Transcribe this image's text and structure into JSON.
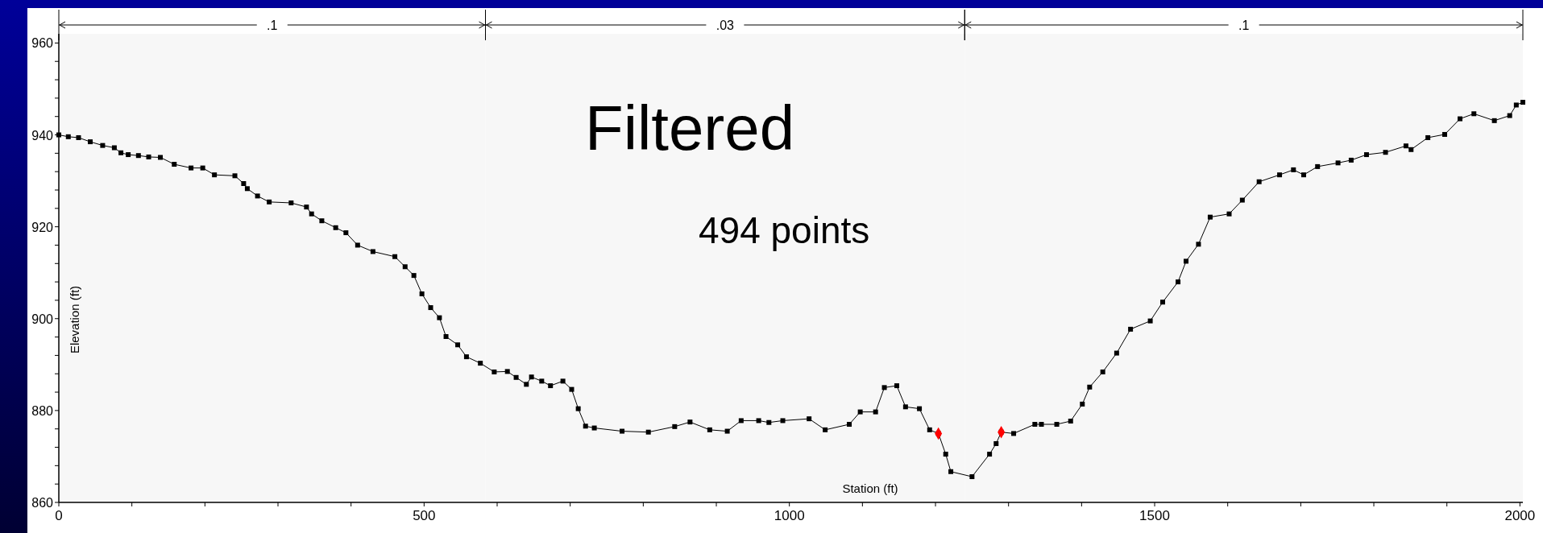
{
  "chart_data": {
    "type": "line",
    "xlabel": "Station (ft)",
    "ylabel": "Elevation (ft)",
    "annotations": [
      "Filtered",
      "494 points"
    ],
    "xlim": [
      0,
      2004
    ],
    "ylim": [
      860,
      962
    ],
    "xticks": [
      0,
      {
        "value": 100,
        "label": null
      },
      {
        "value": 200,
        "label": null
      },
      {
        "value": 300,
        "label": null
      },
      {
        "value": 400,
        "label": null
      },
      500,
      {
        "value": 600,
        "label": null
      },
      {
        "value": 700,
        "label": null
      },
      {
        "value": 800,
        "label": null
      },
      {
        "value": 900,
        "label": null
      },
      1000,
      {
        "value": 1100,
        "label": null
      },
      {
        "value": 1200,
        "label": null
      },
      {
        "value": 1300,
        "label": null
      },
      {
        "value": 1400,
        "label": null
      },
      1500,
      {
        "value": 1600,
        "label": null
      },
      {
        "value": 1700,
        "label": null
      },
      {
        "value": 1800,
        "label": null
      },
      {
        "value": 1900,
        "label": null
      },
      2000
    ],
    "yticks": [
      860,
      {
        "value": 864,
        "label": null
      },
      {
        "value": 868,
        "label": null
      },
      {
        "value": 872,
        "label": null
      },
      {
        "value": 876,
        "label": null
      },
      880,
      {
        "value": 884,
        "label": null
      },
      {
        "value": 888,
        "label": null
      },
      {
        "value": 892,
        "label": null
      },
      {
        "value": 896,
        "label": null
      },
      900,
      {
        "value": 904,
        "label": null
      },
      {
        "value": 908,
        "label": null
      },
      {
        "value": 912,
        "label": null
      },
      {
        "value": 916,
        "label": null
      },
      920,
      {
        "value": 924,
        "label": null
      },
      {
        "value": 928,
        "label": null
      },
      {
        "value": 932,
        "label": null
      },
      {
        "value": 936,
        "label": null
      },
      940,
      {
        "value": 944,
        "label": null
      },
      {
        "value": 948,
        "label": null
      },
      {
        "value": 952,
        "label": null
      },
      {
        "value": 956,
        "label": null
      },
      960
    ],
    "bands": [
      {
        "axis": "x",
        "from": 0,
        "to": 584,
        "label": ".1",
        "color": "#f7f7f7"
      },
      {
        "axis": "x",
        "from": 584,
        "to": 1240,
        "label": ".03",
        "color": "#f7f7f7"
      },
      {
        "axis": "x",
        "from": 1240,
        "to": 2004,
        "label": ".1",
        "color": "#f7f7f7"
      }
    ],
    "grid": false,
    "marker": "square",
    "line_style": "solid",
    "series": [
      {
        "color": "#000000",
        "x": [
          0,
          13,
          27,
          43,
          60,
          76,
          85,
          95,
          109,
          123,
          139,
          158,
          181,
          197,
          213,
          241,
          253,
          258,
          272,
          288,
          318,
          339,
          346,
          360,
          379,
          393,
          409,
          430,
          460,
          474,
          486,
          497,
          509,
          521,
          530,
          546,
          558,
          577,
          596,
          614,
          626,
          640,
          647,
          661,
          673,
          690,
          702,
          711,
          721,
          733,
          771,
          807,
          843,
          864,
          891,
          915,
          934,
          958,
          972,
          991,
          1027,
          1049,
          1082,
          1097,
          1118,
          1130,
          1147,
          1159,
          1178,
          1192,
          1204,
          1214,
          1221,
          1250,
          1274,
          1283,
          1290,
          1307,
          1336,
          1345,
          1366,
          1385,
          1401,
          1411,
          1429,
          1448,
          1467,
          1494,
          1511,
          1532,
          1543,
          1560,
          1576,
          1602,
          1620,
          1643,
          1671,
          1690,
          1704,
          1723,
          1751,
          1769,
          1790,
          1816,
          1844,
          1851,
          1874,
          1897,
          1918,
          1937,
          1965,
          1986,
          1995,
          2004
        ],
        "values": [
          940.0,
          939.6,
          939.4,
          938.5,
          937.7,
          937.2,
          936.1,
          935.7,
          935.5,
          935.2,
          935.1,
          933.6,
          932.8,
          932.8,
          931.3,
          931.1,
          929.4,
          928.3,
          926.7,
          925.4,
          925.2,
          924.3,
          922.8,
          921.3,
          919.8,
          918.7,
          916.0,
          914.6,
          913.5,
          911.3,
          909.4,
          905.4,
          902.4,
          900.2,
          896.1,
          894.3,
          891.7,
          890.3,
          888.4,
          888.5,
          887.2,
          885.7,
          887.3,
          886.4,
          885.4,
          886.4,
          884.6,
          880.4,
          876.6,
          876.2,
          875.5,
          875.3,
          876.5,
          877.5,
          875.8,
          875.5,
          877.8,
          877.8,
          877.4,
          877.8,
          878.2,
          875.8,
          877.0,
          879.7,
          879.7,
          885.0,
          885.4,
          880.8,
          880.4,
          875.8,
          875.0,
          870.5,
          866.7,
          865.6,
          870.5,
          872.8,
          875.3,
          875.0,
          877.0,
          877.0,
          877.0,
          877.7,
          881.4,
          885.1,
          888.4,
          892.5,
          897.7,
          899.5,
          903.6,
          908.0,
          912.5,
          916.2,
          922.1,
          922.8,
          925.8,
          929.8,
          931.3,
          932.4,
          931.3,
          933.1,
          933.9,
          934.5,
          935.7,
          936.2,
          937.6,
          936.8,
          939.4,
          940.1,
          943.5,
          944.6,
          943.1,
          944.2,
          946.5,
          947.1
        ]
      },
      {
        "type": "scatter",
        "color": "#ff0000",
        "marker": "diamond",
        "x": [
          1204,
          1290
        ],
        "values": [
          875.0,
          875.3
        ]
      }
    ]
  }
}
